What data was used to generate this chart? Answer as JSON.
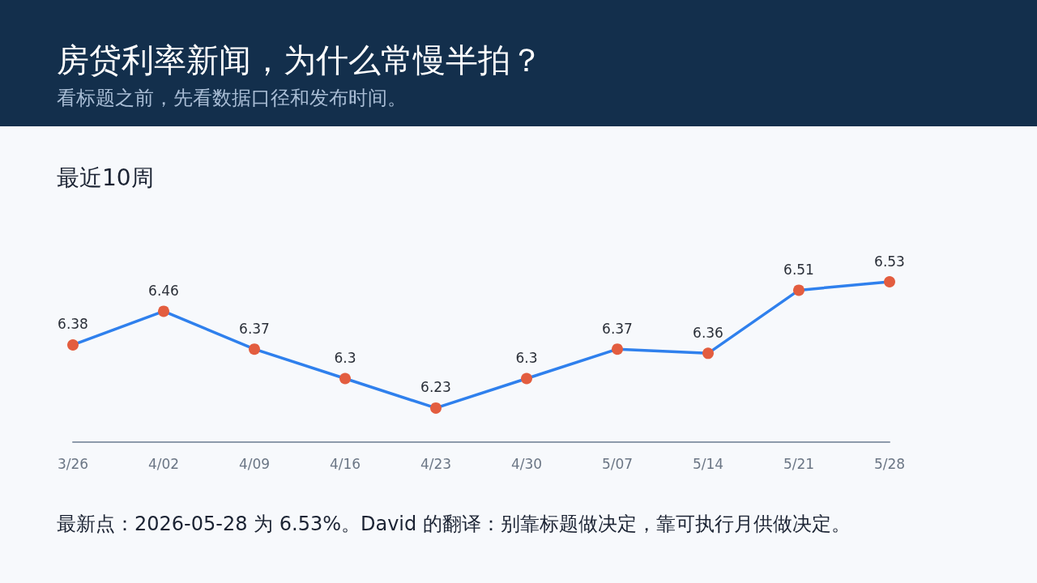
{
  "chart_data": {
    "type": "line",
    "title": "房贷利率新闻，为什么常慢半拍？",
    "subtitle": "看标题之前，先看数据口径和发布时间。",
    "annotations": [
      "最近10周",
      "最新点：2026-05-28 为 6.53%。David 的翻译：别靠标题做决定，靠可执行月供做决定。"
    ],
    "categories": [
      "3/26",
      "4/02",
      "4/09",
      "4/16",
      "4/23",
      "4/30",
      "5/07",
      "5/14",
      "5/21",
      "5/28"
    ],
    "values": [
      6.38,
      6.46,
      6.37,
      6.3,
      6.23,
      6.3,
      6.37,
      6.36,
      6.51,
      6.53
    ],
    "color": "#2f80ed",
    "colors": [
      "#e35d3f",
      "#e35d3f",
      "#e35d3f",
      "#e35d3f",
      "#e35d3f",
      "#e35d3f",
      "#e35d3f",
      "#e35d3f",
      "#e35d3f",
      "#e35d3f"
    ],
    "tick_labels": "x",
    "marker": "circle",
    "line_style": "solid",
    "data_labels": true,
    "grid": false
  }
}
